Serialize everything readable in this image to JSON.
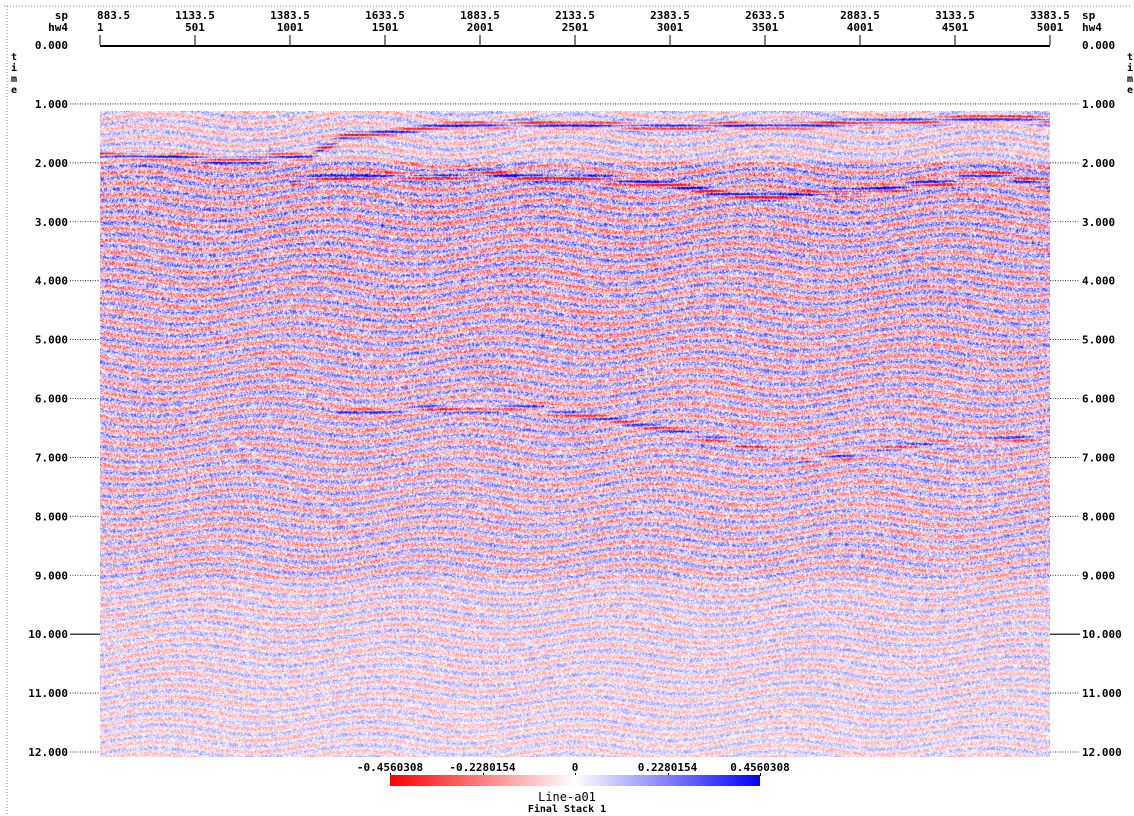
{
  "axes_headers": {
    "sp": "sp",
    "hw4": "hw4",
    "time": "time"
  },
  "chart_data": {
    "type": "heatmap",
    "title": "Line-a01",
    "subtitle": "Final Stack 1",
    "x_axis_sp": {
      "label": "sp",
      "ticks": [
        "883.5",
        "1133.5",
        "1383.5",
        "1633.5",
        "1883.5",
        "2133.5",
        "2383.5",
        "2633.5",
        "2883.5",
        "3133.5",
        "3383.5"
      ]
    },
    "x_axis_hw4": {
      "label": "hw4",
      "ticks": [
        "1",
        "501",
        "1001",
        "1501",
        "2001",
        "2501",
        "3001",
        "3501",
        "4001",
        "4501",
        "5001"
      ],
      "range": [
        1,
        5001
      ]
    },
    "y_axis": {
      "label": "time",
      "ticks": [
        "0.000",
        "1.000",
        "2.000",
        "3.000",
        "4.000",
        "5.000",
        "6.000",
        "7.000",
        "8.000",
        "9.000",
        "10.000",
        "11.000",
        "12.000"
      ],
      "bold_ticks": [
        "0.000",
        "10.000"
      ],
      "range": [
        0,
        12
      ],
      "data_start": 1.15
    },
    "colorbar": {
      "ticks": [
        "-0.4560308",
        "-0.2280154",
        "0",
        "0.2280154",
        "0.4560308"
      ],
      "range": [
        -0.4560308,
        0.4560308
      ],
      "colors": {
        "negative": "#ff0000",
        "zero": "#ffffff",
        "positive": "#0000ff"
      }
    },
    "grid": true
  }
}
